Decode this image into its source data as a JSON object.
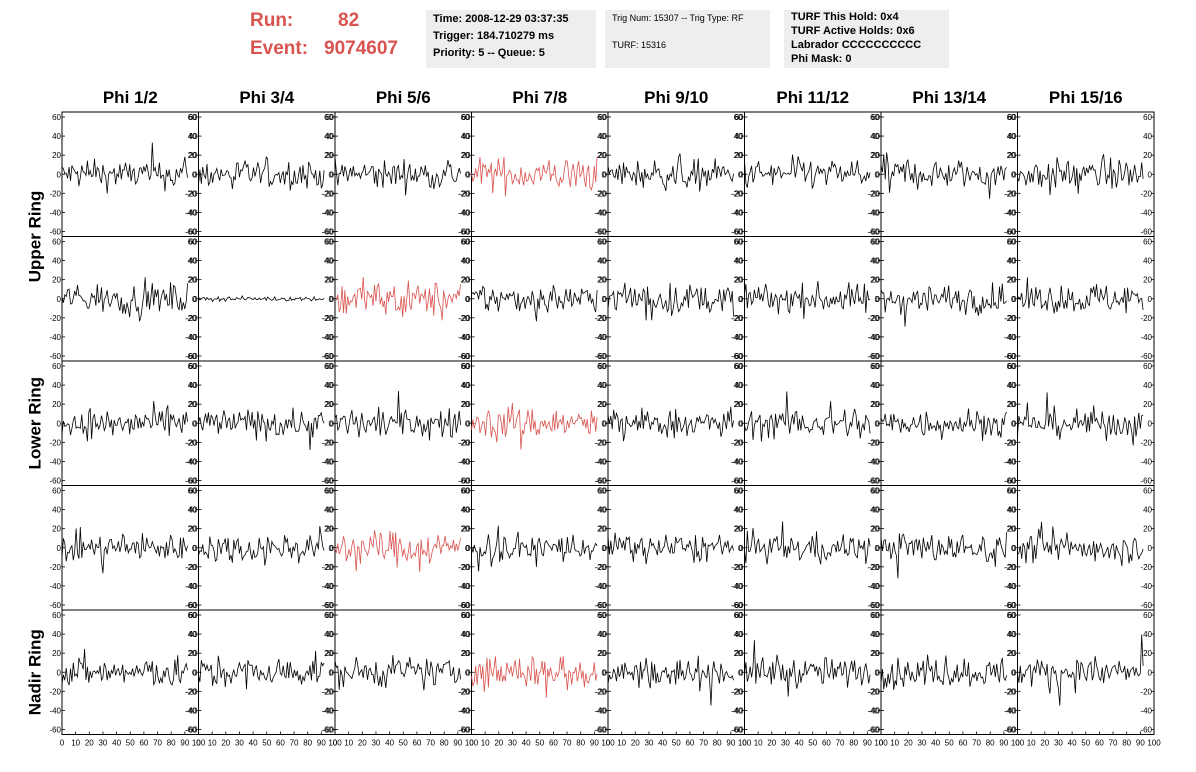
{
  "header": {
    "run_label": "Run:",
    "run_value": "82",
    "event_label": "Event:",
    "event_value": "9074607",
    "accent_color": "#d9534f"
  },
  "info": {
    "time": "Time: 2008-12-29 03:37:35",
    "trigger": "Trigger: 184.710279 ms",
    "priority": "Priority: 5 -- Queue: 5",
    "trig_num": "Trig Num: 15307 -- Trig Type: RF",
    "turf": "TURF: 15316",
    "turf_hold": "TURF This Hold: 0x4",
    "turf_active": "TURF Active Holds: 0x6",
    "labrador": "Labrador CCCCCCCCCC",
    "phi_mask": "Phi Mask: 0"
  },
  "chart_data": {
    "type": "line",
    "columns": [
      "Phi 1/2",
      "Phi 3/4",
      "Phi 5/6",
      "Phi 7/8",
      "Phi 9/10",
      "Phi 11/12",
      "Phi 13/14",
      "Phi 15/16"
    ],
    "ring_labels": [
      "Upper Ring",
      "Lower Ring",
      "Nadir Ring"
    ],
    "rows": 5,
    "ylim": [
      -60,
      60
    ],
    "xlim": [
      0,
      100
    ],
    "y_ticks": [
      -60,
      -40,
      -20,
      0,
      20,
      40,
      60
    ],
    "x_ticks": [
      0,
      10,
      20,
      30,
      40,
      50,
      60,
      70,
      80,
      90,
      100
    ],
    "trace_color": "#000000",
    "highlight_color": "#d9534f",
    "highlighted_panels": [
      [
        0,
        3
      ],
      [
        1,
        2
      ],
      [
        2,
        3
      ],
      [
        3,
        2
      ],
      [
        4,
        3
      ]
    ],
    "quiet_panels": [
      [
        1,
        1
      ]
    ],
    "typical_amplitude": 20,
    "quiet_amplitude": 3,
    "samples_per_trace": 90
  }
}
